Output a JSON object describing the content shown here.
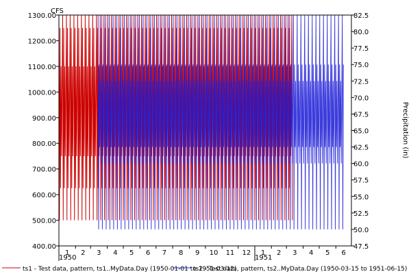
{
  "chart_data": {
    "type": "line",
    "y_left": {
      "label": "CFS",
      "ylim": [
        400,
        1300
      ],
      "ticks": [
        "400.00",
        "500.00",
        "600.00",
        "700.00",
        "800.00",
        "900.00",
        "1000.00",
        "1100.00",
        "1200.00",
        "1300.00"
      ]
    },
    "y_right": {
      "label": "Precipitation (in)",
      "ylim": [
        47.5,
        82.5
      ],
      "ticks": [
        "47.5",
        "50.0",
        "52.5",
        "55.0",
        "57.5",
        "60.0",
        "62.5",
        "65.0",
        "67.5",
        "70.0",
        "72.5",
        "75.0",
        "77.5",
        "80.0",
        "82.5"
      ]
    },
    "x": {
      "range": [
        "1950-01-01",
        "1951-06-30"
      ],
      "month_ticks": [
        "1",
        "2",
        "3",
        "4",
        "5",
        "6",
        "7",
        "8",
        "9",
        "10",
        "11",
        "12",
        "1",
        "2",
        "3",
        "4",
        "5",
        "6"
      ],
      "year_labels": [
        "1950",
        "1951"
      ]
    },
    "grid": false,
    "legend_position": "bottom",
    "series": [
      {
        "name": "ts1 - Test data, pattern, ts1..MyData.Day (1950-01-01 to 1951-03-12)",
        "axis": "left",
        "color": "#cc0000",
        "start": "1950-01-01",
        "end": "1951-03-12",
        "daily_pattern": [
          1300,
          500,
          1250,
          625,
          1100,
          750,
          1025
        ]
      },
      {
        "name": "ts2 - Test data, pattern, ts2..MyData.Day (1950-03-15 to 1951-06-15)",
        "axis": "right",
        "color": "#1a1ad6",
        "start": "1950-03-15",
        "end": "1951-06-15",
        "daily_pattern": [
          82.5,
          50.0,
          75.0,
          62.5,
          72.5,
          60.0,
          70.0
        ]
      }
    ]
  },
  "legend": {
    "items": [
      "ts1 - Test data, pattern, ts1..MyData.Day (1950-01-01 to 1951-03-12)",
      "ts2 - Test data, pattern, ts2..MyData.Day (1950-03-15 to 1951-06-15)"
    ]
  }
}
